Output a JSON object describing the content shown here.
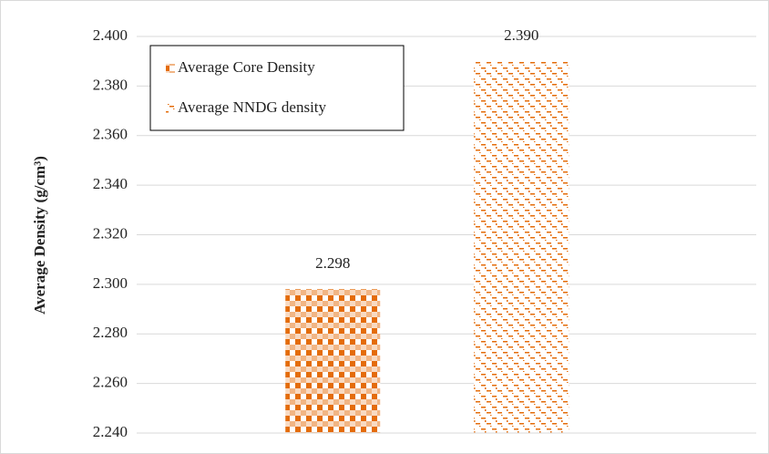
{
  "chart_data": {
    "type": "bar",
    "y_label": "Average Density (g/cm³)",
    "categories": [
      null
    ],
    "series": [
      {
        "name": "Average Core Density",
        "color": "#e46c0a",
        "values": [
          2.298
        ],
        "value_labels": [
          "2.298"
        ]
      },
      {
        "name": "Average NNDG density",
        "color": "#e46c0a",
        "values": [
          2.39
        ],
        "value_labels": [
          "2.390"
        ]
      }
    ],
    "ylim": [
      2.24,
      2.4
    ],
    "yticks": [
      {
        "value": 2.24,
        "label": "2.240"
      },
      {
        "value": 2.26,
        "label": "2.260"
      },
      {
        "value": 2.28,
        "label": "2.280"
      },
      {
        "value": 2.3,
        "label": "2.300"
      },
      {
        "value": 2.32,
        "label": "2.320"
      },
      {
        "value": 2.34,
        "label": "2.340"
      },
      {
        "value": 2.36,
        "label": "2.360"
      },
      {
        "value": 2.38,
        "label": "2.380"
      },
      {
        "value": 2.4,
        "label": "2.400"
      }
    ],
    "grid": true,
    "legend": "upper-left"
  }
}
